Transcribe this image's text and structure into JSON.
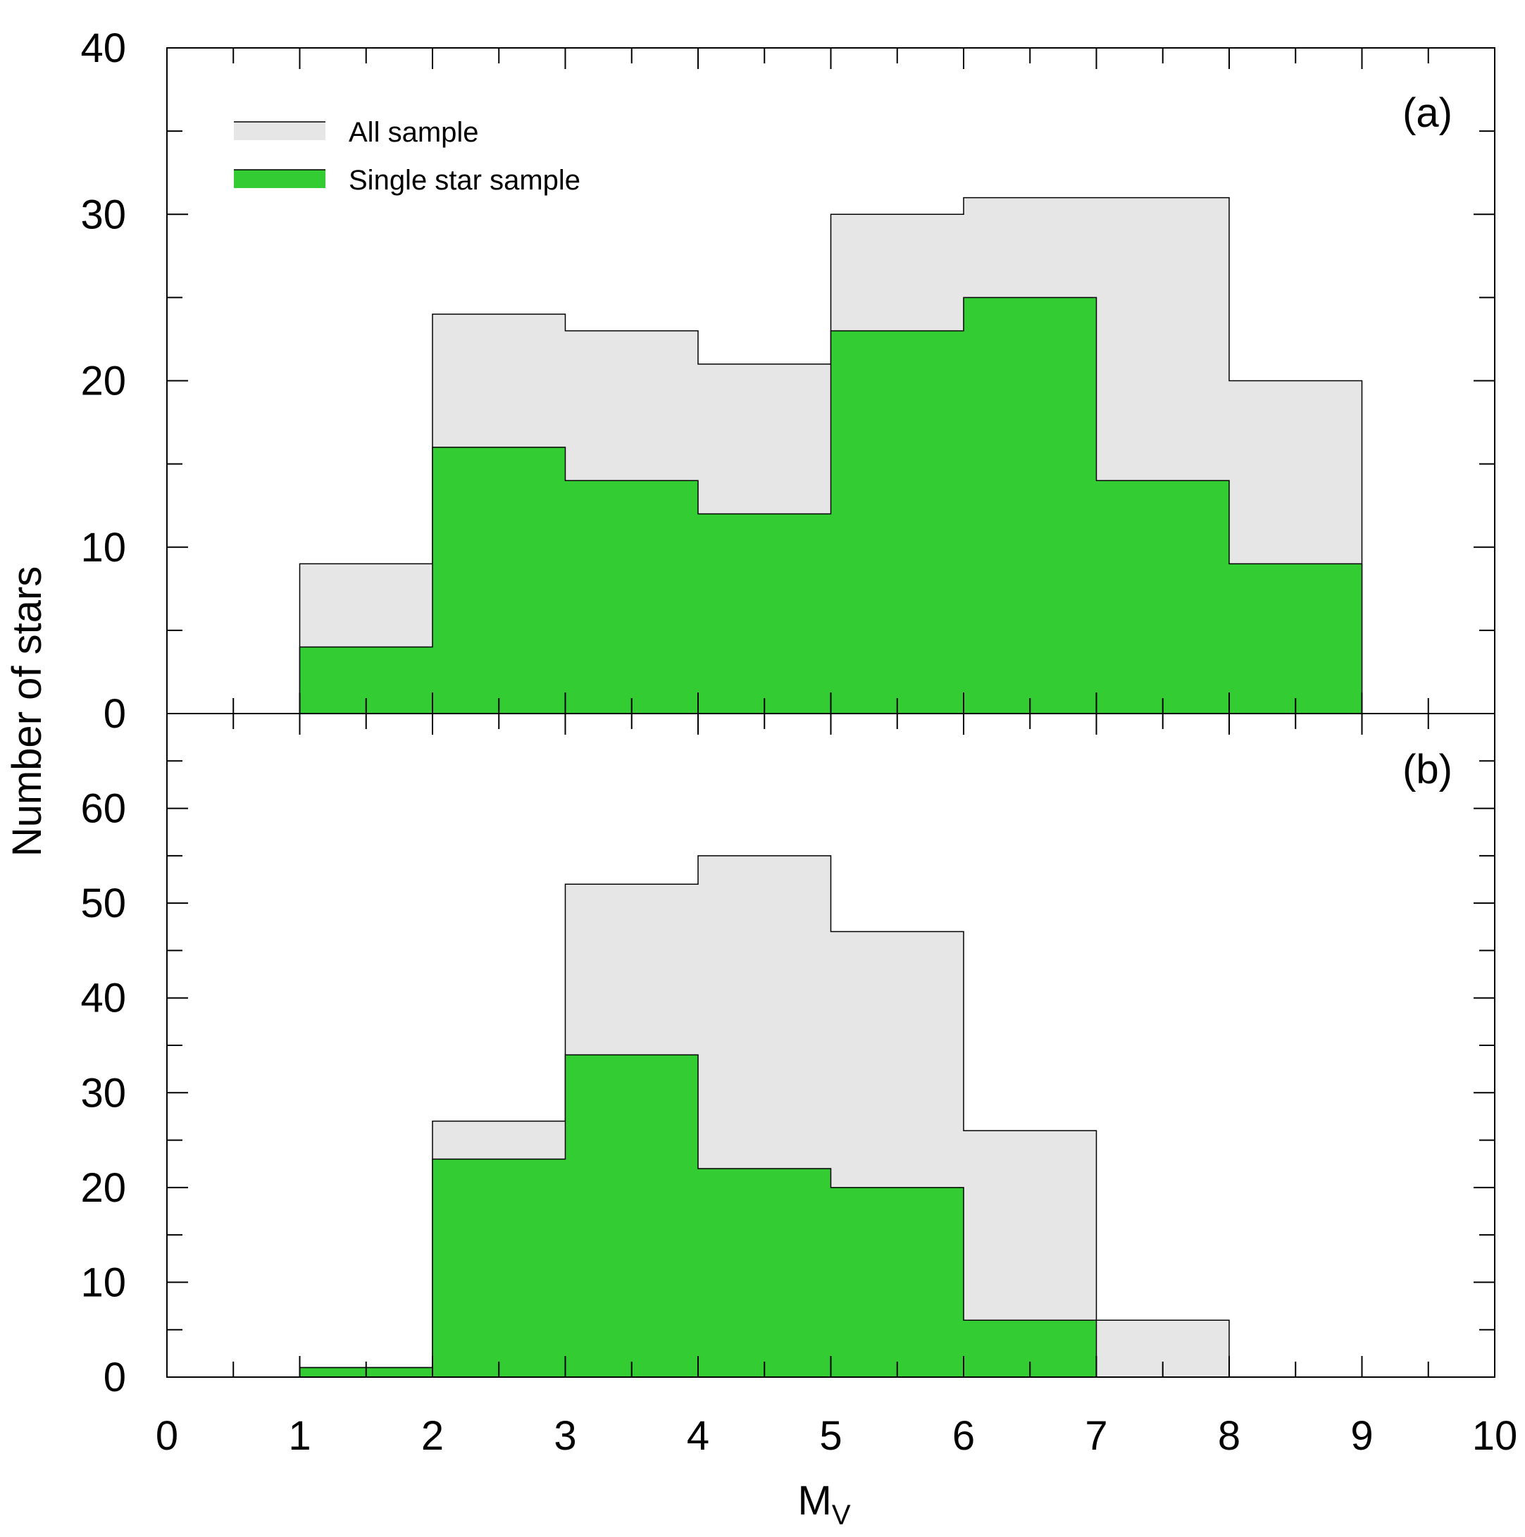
{
  "chart_data": {
    "type": "bar",
    "ylabel": "Number of stars",
    "xlabel": "M",
    "xlabel_sub": "V",
    "xlim": [
      0,
      10
    ],
    "x_ticks": [
      "0",
      "1",
      "2",
      "3",
      "4",
      "5",
      "6",
      "7",
      "8",
      "9",
      "10"
    ],
    "legend": {
      "placement": "top-left",
      "entries": [
        {
          "label": "All sample",
          "color": "#e6e6e6"
        },
        {
          "label": "Single star sample",
          "color": "#33cc33"
        }
      ]
    },
    "colors": {
      "all": "#e6e6e6",
      "single": "#33cc33",
      "outline": "#000000"
    },
    "panels": [
      {
        "label": "(a)",
        "ylim": [
          0,
          40
        ],
        "y_ticks": [
          "0",
          "10",
          "20",
          "30",
          "40"
        ],
        "bin_edges": [
          1,
          2,
          3,
          4,
          5,
          6,
          7,
          8,
          9
        ],
        "series": [
          {
            "name": "All sample",
            "values": [
              9,
              24,
              23,
              21,
              30,
              31,
              31,
              20
            ]
          },
          {
            "name": "Single star sample",
            "values": [
              4,
              16,
              14,
              12,
              23,
              25,
              14,
              9
            ]
          }
        ]
      },
      {
        "label": "(b)",
        "ylim": [
          0,
          70
        ],
        "y_ticks": [
          "0",
          "10",
          "20",
          "30",
          "40",
          "50",
          "60"
        ],
        "bin_edges": [
          1,
          2,
          3,
          4,
          5,
          6,
          7,
          8
        ],
        "series": [
          {
            "name": "All sample",
            "values": [
              1,
              27,
              52,
              55,
              47,
              26,
              6
            ]
          },
          {
            "name": "Single star sample",
            "values": [
              1,
              23,
              34,
              22,
              20,
              6,
              0
            ]
          }
        ]
      }
    ]
  }
}
